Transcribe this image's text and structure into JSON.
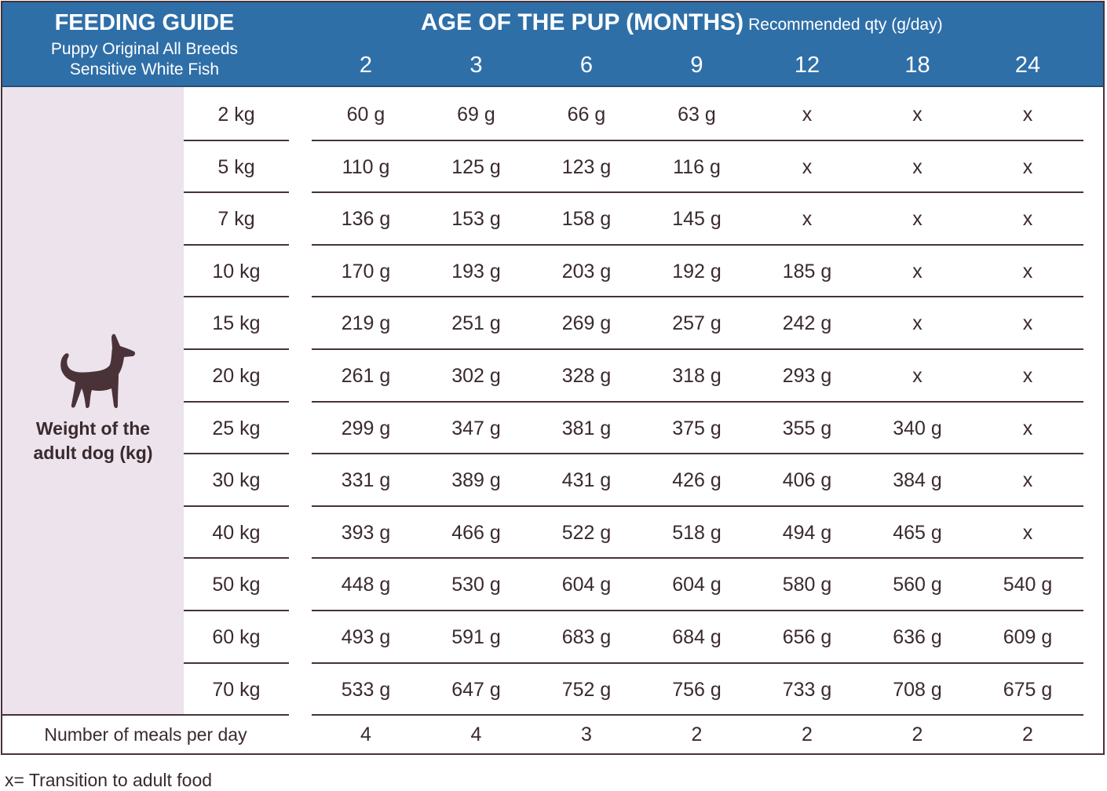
{
  "header": {
    "title": "FEEDING GUIDE",
    "subtitle_line1": "Puppy Original All Breeds",
    "subtitle_line2": "Sensitive White Fish",
    "age_title": "AGE OF THE PUP (MONTHS)",
    "qty_note": "Recommended qty (g/day)",
    "months": [
      "2",
      "3",
      "6",
      "9",
      "12",
      "18",
      "24"
    ]
  },
  "side_label": {
    "line1": "Weight of the",
    "line2": "adult dog (kg)",
    "icon": "dog-silhouette-icon"
  },
  "rows": [
    {
      "weight": "2 kg",
      "values": [
        "60 g",
        "69 g",
        "66 g",
        "63 g",
        "x",
        "x",
        "x"
      ]
    },
    {
      "weight": "5 kg",
      "values": [
        "110 g",
        "125 g",
        "123 g",
        "116 g",
        "x",
        "x",
        "x"
      ]
    },
    {
      "weight": "7 kg",
      "values": [
        "136 g",
        "153 g",
        "158 g",
        "145 g",
        "x",
        "x",
        "x"
      ]
    },
    {
      "weight": "10 kg",
      "values": [
        "170 g",
        "193 g",
        "203 g",
        "192 g",
        "185 g",
        "x",
        "x"
      ]
    },
    {
      "weight": "15 kg",
      "values": [
        "219 g",
        "251 g",
        "269 g",
        "257 g",
        "242 g",
        "x",
        "x"
      ]
    },
    {
      "weight": "20 kg",
      "values": [
        "261 g",
        "302 g",
        "328 g",
        "318 g",
        "293 g",
        "x",
        "x"
      ]
    },
    {
      "weight": "25 kg",
      "values": [
        "299 g",
        "347 g",
        "381  g",
        "375 g",
        "355 g",
        "340 g",
        "x"
      ]
    },
    {
      "weight": "30 kg",
      "values": [
        "331 g",
        "389 g",
        "431 g",
        "426 g",
        "406 g",
        "384 g",
        "x"
      ]
    },
    {
      "weight": "40 kg",
      "values": [
        "393 g",
        "466 g",
        "522 g",
        "518 g",
        "494 g",
        "465 g",
        "x"
      ]
    },
    {
      "weight": "50 kg",
      "values": [
        "448 g",
        "530 g",
        "604 g",
        "604 g",
        "580 g",
        "560 g",
        "540 g"
      ]
    },
    {
      "weight": "60 kg",
      "values": [
        "493 g",
        "591 g",
        "683 g",
        "684 g",
        "656 g",
        "636 g",
        "609 g"
      ]
    },
    {
      "weight": "70 kg",
      "values": [
        "533 g",
        "647 g",
        "752 g",
        "756 g",
        "733 g",
        "708 g",
        "675 g"
      ]
    }
  ],
  "meals": {
    "label": "Number of meals per day",
    "values": [
      "4",
      "4",
      "3",
      "2",
      "2",
      "2",
      "2"
    ]
  },
  "footnote": "x= Transition to adult food",
  "colors": {
    "header_blue": "#2f6fa8",
    "side_panel": "#ece3ec",
    "text_dark": "#3a2a2e"
  }
}
